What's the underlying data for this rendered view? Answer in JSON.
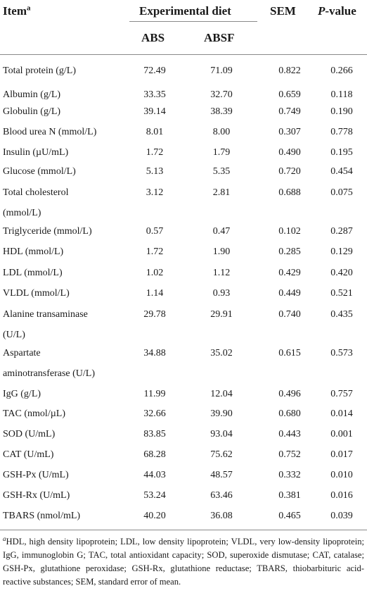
{
  "table": {
    "header": {
      "item": "Item",
      "item_sup": "a",
      "experimental_diet": "Experimental diet",
      "abs": "ABS",
      "absf": "ABSF",
      "sem": "SEM",
      "p_value_italic": "P",
      "p_value_rest": "-value"
    },
    "rows": [
      {
        "item": [
          "Total protein (g/L)"
        ],
        "abs": "72.49",
        "absf": "71.09",
        "sem": "0.822",
        "p": "0.266"
      },
      {
        "item": [
          "Albumin (g/L)"
        ],
        "abs": "33.35",
        "absf": "32.70",
        "sem": "0.659",
        "p": "0.118"
      },
      {
        "item": [
          "Globulin (g/L)"
        ],
        "abs": "39.14",
        "absf": "38.39",
        "sem": "0.749",
        "p": "0.190"
      },
      {
        "item": [
          "Blood urea N (mmol/L)"
        ],
        "abs": "8.01",
        "absf": "8.00",
        "sem": "0.307",
        "p": "0.778"
      },
      {
        "item": [
          "Insulin (µU/mL)"
        ],
        "abs": "1.72",
        "absf": "1.79",
        "sem": "0.490",
        "p": "0.195"
      },
      {
        "item": [
          "Glucose (mmol/L)"
        ],
        "abs": "5.13",
        "absf": "5.35",
        "sem": "0.720",
        "p": "0.454"
      },
      {
        "item": [
          "Total cholesterol",
          "(mmol/L)"
        ],
        "abs": "3.12",
        "absf": "2.81",
        "sem": "0.688",
        "p": "0.075"
      },
      {
        "item": [
          "Triglyceride (mmol/L)"
        ],
        "abs": "0.57",
        "absf": "0.47",
        "sem": "0.102",
        "p": "0.287"
      },
      {
        "item": [
          "HDL (mmol/L)"
        ],
        "abs": "1.72",
        "absf": "1.90",
        "sem": "0.285",
        "p": "0.129"
      },
      {
        "item": [
          "LDL (mmol/L)"
        ],
        "abs": "1.02",
        "absf": "1.12",
        "sem": "0.429",
        "p": "0.420"
      },
      {
        "item": [
          "VLDL (mmol/L)"
        ],
        "abs": "1.14",
        "absf": "0.93",
        "sem": "0.449",
        "p": "0.521"
      },
      {
        "item": [
          "Alanine transaminase",
          "(U/L)"
        ],
        "abs": "29.78",
        "absf": "29.91",
        "sem": "0.740",
        "p": "0.435"
      },
      {
        "item": [
          "Aspartate",
          "aminotransferase (U/L)"
        ],
        "abs": "34.88",
        "absf": "35.02",
        "sem": "0.615",
        "p": "0.573"
      },
      {
        "item": [
          "IgG (g/L)"
        ],
        "abs": "11.99",
        "absf": "12.04",
        "sem": "0.496",
        "p": "0.757"
      },
      {
        "item": [
          "TAC (nmol/µL)"
        ],
        "abs": "32.66",
        "absf": "39.90",
        "sem": "0.680",
        "p": "0.014"
      },
      {
        "item": [
          "SOD (U/mL)"
        ],
        "abs": "83.85",
        "absf": "93.04",
        "sem": "0.443",
        "p": "0.001"
      },
      {
        "item": [
          "CAT (U/mL)"
        ],
        "abs": "68.28",
        "absf": "75.62",
        "sem": "0.752",
        "p": "0.017"
      },
      {
        "item": [
          "GSH-Px (U/mL)"
        ],
        "abs": "44.03",
        "absf": "48.57",
        "sem": "0.332",
        "p": "0.010"
      },
      {
        "item": [
          "GSH-Rx (U/mL)"
        ],
        "abs": "53.24",
        "absf": "63.46",
        "sem": "0.381",
        "p": "0.016"
      },
      {
        "item": [
          "TBARS (nmol/mL)"
        ],
        "abs": "40.20",
        "absf": "36.08",
        "sem": "0.465",
        "p": "0.039"
      }
    ]
  },
  "footnote": {
    "marker": "a",
    "text": "HDL, high density lipoprotein; LDL, low density lipoprotein; VLDL, very low-density lipoprotein; IgG, immunoglobin G; TAC, total antioxidant capacity; SOD, superoxide dismutase; CAT, catalase; GSH-Px, glutathione peroxidase; GSH-Rx, glutathione reductase; TBARS, thiobarbituric acid-reactive substances; SEM, standard error of mean."
  }
}
